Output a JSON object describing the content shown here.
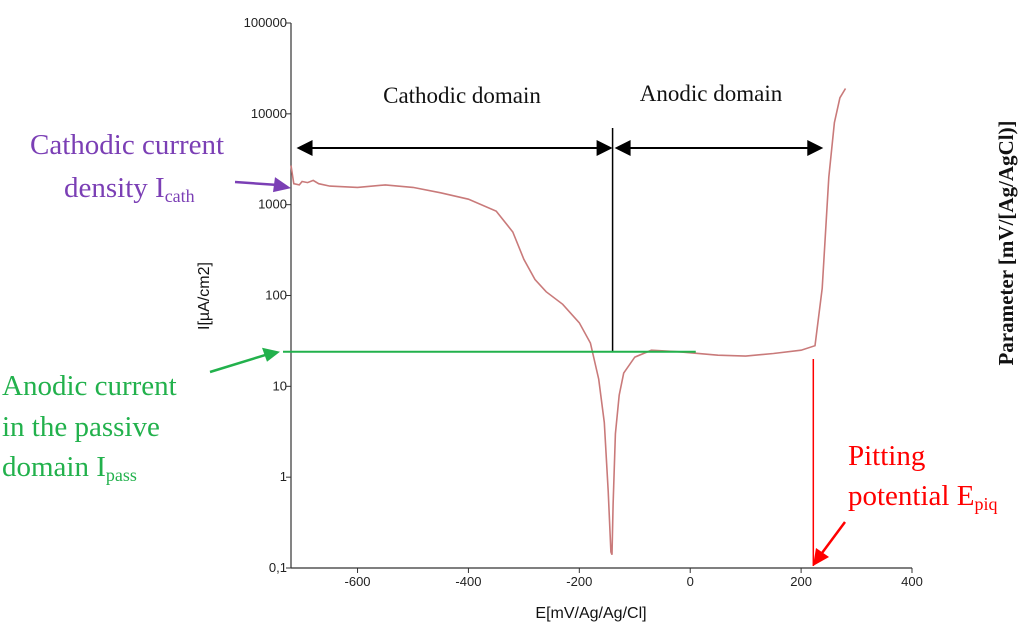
{
  "chart_data": {
    "type": "line",
    "title": "",
    "xlabel": "E[mV/Ag/Ag/Cl]",
    "ylabel": "I[µA/cm2]",
    "right_label": "Parameter [mV/[Ag/AgCl)]",
    "y_scale": "log",
    "xlim": [
      -720,
      400
    ],
    "ylim": [
      0.1,
      100000
    ],
    "x_ticks": [
      {
        "value": -600,
        "label": "-600"
      },
      {
        "value": -400,
        "label": "-400"
      },
      {
        "value": -200,
        "label": "-200"
      },
      {
        "value": 0,
        "label": "0"
      },
      {
        "value": 200,
        "label": "200"
      },
      {
        "value": 400,
        "label": "400"
      }
    ],
    "y_ticks": [
      {
        "value": 0.1,
        "label": "0,1"
      },
      {
        "value": 1,
        "label": "1"
      },
      {
        "value": 10,
        "label": "10"
      },
      {
        "value": 100,
        "label": "100"
      },
      {
        "value": 1000,
        "label": "1000"
      },
      {
        "value": 10000,
        "label": "10000"
      },
      {
        "value": 100000,
        "label": "100000"
      }
    ],
    "grid": false,
    "series": [
      {
        "color": "#c97a7a",
        "points": [
          [
            -720,
            2700
          ],
          [
            -715,
            1700
          ],
          [
            -705,
            1650
          ],
          [
            -700,
            1800
          ],
          [
            -690,
            1750
          ],
          [
            -680,
            1850
          ],
          [
            -670,
            1700
          ],
          [
            -650,
            1600
          ],
          [
            -600,
            1550
          ],
          [
            -550,
            1650
          ],
          [
            -500,
            1550
          ],
          [
            -450,
            1350
          ],
          [
            -400,
            1150
          ],
          [
            -350,
            850
          ],
          [
            -320,
            500
          ],
          [
            -300,
            250
          ],
          [
            -280,
            150
          ],
          [
            -260,
            110
          ],
          [
            -230,
            80
          ],
          [
            -200,
            50
          ],
          [
            -180,
            30
          ],
          [
            -165,
            12
          ],
          [
            -155,
            4
          ],
          [
            -148,
            0.7
          ],
          [
            -143,
            0.15
          ],
          [
            -141,
            0.14
          ],
          [
            -139,
            0.5
          ],
          [
            -135,
            3
          ],
          [
            -128,
            8
          ],
          [
            -120,
            14
          ],
          [
            -100,
            21
          ],
          [
            -70,
            25
          ],
          [
            -20,
            24
          ],
          [
            50,
            22
          ],
          [
            100,
            21.5
          ],
          [
            150,
            23
          ],
          [
            200,
            25
          ],
          [
            225,
            28
          ],
          [
            238,
            120
          ],
          [
            250,
            2000
          ],
          [
            260,
            8000
          ],
          [
            270,
            15000
          ],
          [
            280,
            19000
          ]
        ]
      }
    ],
    "annotations": {
      "cathodic_domain": {
        "text": "Cathodic domain",
        "x_from": -710,
        "x_to": -140
      },
      "anodic_domain": {
        "text": "Anodic domain",
        "x_from": -140,
        "x_to": 240
      },
      "corrosion_potential_x": -140,
      "cathodic_current": {
        "line1": "Cathodic current",
        "line2": "density I",
        "sub": "cath",
        "color": "#7b3fb5",
        "target_y": 1600
      },
      "anodic_current": {
        "line1": "Anodic current",
        "line2": "in the passive",
        "line3": "domain I",
        "sub": "pass",
        "color": "#22b14c",
        "level": 24,
        "line_x_to": 10
      },
      "pitting_potential": {
        "line1": "Pitting",
        "line2": "potential E",
        "sub": "piq",
        "color": "#ff0000",
        "x": 222,
        "from_y": 20,
        "to_y": 0.1
      }
    }
  }
}
